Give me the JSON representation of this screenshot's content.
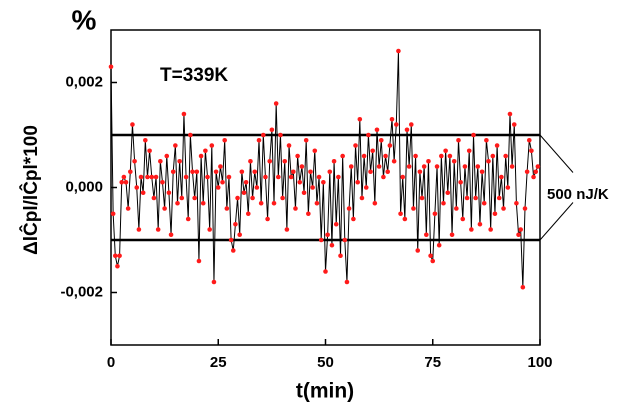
{
  "chart_data": {
    "type": "line",
    "unit_label": "%",
    "annotation": "T=339K",
    "x_label": "t(min)",
    "y_label": "ΔlĈpl/lĈpl*100",
    "band_label": "500 nJ/K",
    "reference_lines": [
      0.001,
      -0.001
    ],
    "xlim": [
      0,
      100
    ],
    "xticks": [
      0,
      25,
      50,
      75,
      100
    ],
    "ylim": [
      -0.003,
      0.003
    ],
    "yticks": [
      {
        "value": -0.002,
        "label": "-0,002"
      },
      {
        "value": 0,
        "label": "0,000"
      },
      {
        "value": 0.002,
        "label": "0,002"
      }
    ],
    "x": [
      0,
      0.5,
      1,
      1.5,
      2,
      2.5,
      3,
      3.5,
      4,
      4.5,
      5,
      5.5,
      6,
      6.5,
      7,
      7.5,
      8,
      8.5,
      9,
      9.5,
      10,
      10.5,
      11,
      11.5,
      12,
      12.5,
      13,
      13.5,
      14,
      14.5,
      15,
      15.5,
      16,
      16.5,
      17,
      17.5,
      18,
      18.5,
      19,
      19.5,
      20,
      20.5,
      21,
      21.5,
      22,
      22.5,
      23,
      23.5,
      24,
      24.5,
      25,
      25.5,
      26,
      26.5,
      27,
      27.5,
      28,
      28.5,
      29,
      29.5,
      30,
      30.5,
      31,
      31.5,
      32,
      32.5,
      33,
      33.5,
      34,
      34.5,
      35,
      35.5,
      36,
      36.5,
      37,
      37.5,
      38,
      38.5,
      39,
      39.5,
      40,
      40.5,
      41,
      41.5,
      42,
      42.5,
      43,
      43.5,
      44,
      44.5,
      45,
      45.5,
      46,
      46.5,
      47,
      47.5,
      48,
      48.5,
      49,
      49.5,
      50,
      50.5,
      51,
      51.5,
      52,
      52.5,
      53,
      53.5,
      54,
      54.5,
      55,
      55.5,
      56,
      56.5,
      57,
      57.5,
      58,
      58.5,
      59,
      59.5,
      60,
      60.5,
      61,
      61.5,
      62,
      62.5,
      63,
      63.5,
      64,
      64.5,
      65,
      65.5,
      66,
      66.5,
      67,
      67.5,
      68,
      68.5,
      69,
      69.5,
      70,
      70.5,
      71,
      71.5,
      72,
      72.5,
      73,
      73.5,
      74,
      74.5,
      75,
      75.5,
      76,
      76.5,
      77,
      77.5,
      78,
      78.5,
      79,
      79.5,
      80,
      80.5,
      81,
      81.5,
      82,
      82.5,
      83,
      83.5,
      84,
      84.5,
      85,
      85.5,
      86,
      86.5,
      87,
      87.5,
      88,
      88.5,
      89,
      89.5,
      90,
      90.5,
      91,
      91.5,
      92,
      92.5,
      93,
      93.5,
      94,
      94.5,
      95,
      95.5,
      96,
      96.5,
      97,
      97.5,
      98,
      98.5,
      99,
      99.5
    ],
    "series": [
      {
        "line_color": "#000000",
        "color": "#ff1a1a",
        "values": [
          0.0023,
          -0.0005,
          -0.0013,
          -0.0015,
          -0.0013,
          0.0001,
          0.0002,
          0.0001,
          -0.0004,
          0.0003,
          0.0012,
          0.0005,
          0.0,
          -0.0008,
          0.0002,
          -0.0001,
          0.0009,
          0.0002,
          0.0007,
          0.0002,
          -0.0002,
          0.0002,
          -0.0008,
          0.0005,
          0.0001,
          -0.0004,
          0.0006,
          -0.0001,
          -0.0009,
          0.0003,
          0.0008,
          -0.0003,
          0.0005,
          -0.0002,
          0.0014,
          0.0002,
          -0.0006,
          0.001,
          0.0003,
          -0.0002,
          0.0003,
          -0.0014,
          0.0006,
          -0.0003,
          0.0007,
          0.0002,
          -0.0008,
          0.0008,
          -0.0018,
          0.0003,
          0.0,
          0.0004,
          0.0001,
          0.0009,
          -0.0004,
          0.0002,
          -0.001,
          -0.0012,
          -0.0007,
          -0.0002,
          -0.0009,
          0.0003,
          -0.0001,
          0.0001,
          -0.0005,
          0.0005,
          -0.0002,
          0.0003,
          0.0,
          0.0009,
          -0.0003,
          0.001,
          0.0002,
          -0.0006,
          0.0005,
          0.0011,
          -0.0003,
          0.0016,
          0.0002,
          0.001,
          -0.0002,
          0.0005,
          -0.0008,
          0.0008,
          0.0002,
          0.0003,
          -0.0004,
          0.0006,
          0.0001,
          0.0004,
          -0.0001,
          0.0009,
          -0.0005,
          0.0003,
          0.0,
          0.0007,
          -0.0003,
          0.0002,
          -0.001,
          0.0001,
          -0.0016,
          -0.0009,
          0.0003,
          -0.0011,
          0.0005,
          -0.0007,
          0.0002,
          -0.0013,
          0.0006,
          -0.001,
          -0.0018,
          -0.0004,
          0.0004,
          -0.0006,
          0.0008,
          0.0001,
          0.0013,
          -0.0002,
          0.0006,
          0.0,
          0.001,
          0.0003,
          0.0007,
          -0.0003,
          0.0011,
          0.0004,
          0.0009,
          0.0002,
          0.0006,
          0.0003,
          0.0008,
          0.0013,
          0.0005,
          0.0012,
          0.0026,
          -0.0005,
          0.0002,
          -0.0006,
          0.0011,
          0.0004,
          0.0012,
          -0.0004,
          0.0006,
          -0.0012,
          0.0003,
          -0.0002,
          0.0004,
          -0.0009,
          0.0005,
          -0.0013,
          -0.0014,
          -0.0005,
          0.0004,
          -0.0011,
          0.0006,
          -0.0003,
          0.0007,
          -0.0001,
          0.0006,
          -0.0009,
          0.0005,
          -0.0004,
          0.0009,
          0.0001,
          -0.0006,
          0.0004,
          -0.0002,
          0.0007,
          -0.0008,
          0.001,
          -0.0002,
          0.0004,
          -0.0007,
          0.0003,
          -0.0003,
          0.0009,
          0.0005,
          -0.0008,
          0.0006,
          -0.0005,
          0.0008,
          -0.0002,
          0.0002,
          -0.0004,
          0.0006,
          0.0,
          0.0014,
          0.0004,
          0.0012,
          -0.0003,
          -0.0009,
          -0.0008,
          -0.0019,
          -0.0004,
          0.0003,
          0.0009,
          0.0007,
          0.0002,
          0.0003,
          0.0004
        ]
      }
    ]
  }
}
